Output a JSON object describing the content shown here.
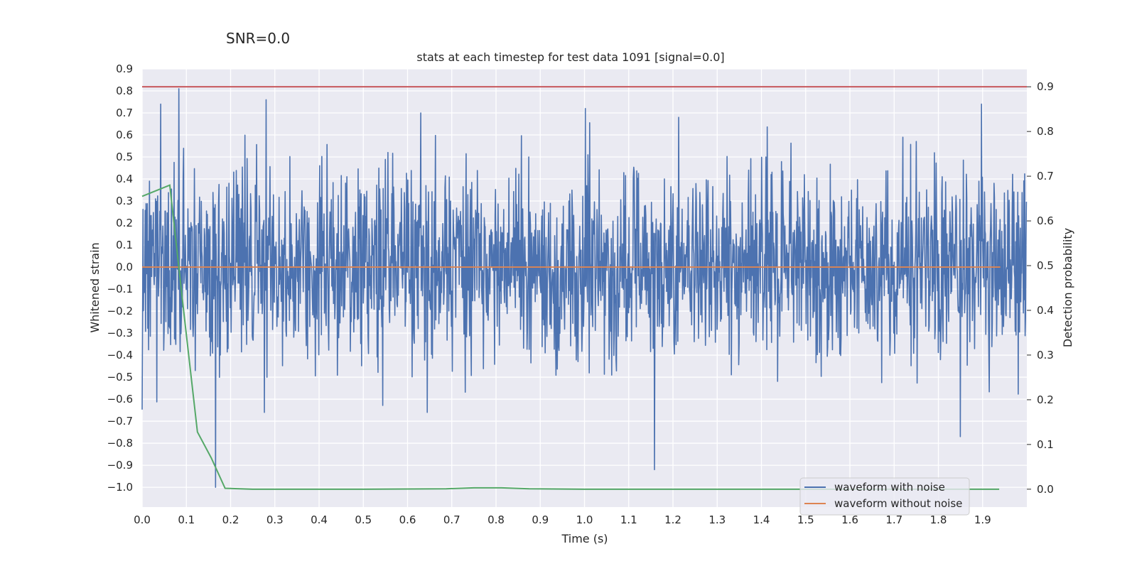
{
  "suptitle": "SNR=0.0",
  "chart_data": {
    "type": "line",
    "title": "stats at each timestep for test data 1091 [signal=0.0]",
    "xlabel": "Time (s)",
    "ylabel": "Whitened strain",
    "ylabel_right": "Detection probability",
    "xlim": [
      0.0,
      2.0
    ],
    "ylim": [
      -1.09,
      0.9
    ],
    "ylim_right": [
      -0.04,
      0.94
    ],
    "x_ticks": [
      0.0,
      0.1,
      0.2,
      0.3,
      0.4,
      0.5,
      0.6,
      0.7,
      0.8,
      0.9,
      1.0,
      1.1,
      1.2,
      1.3,
      1.4,
      1.5,
      1.6,
      1.7,
      1.8,
      1.9
    ],
    "x_tick_labels": [
      "0.0",
      "0.1",
      "0.2",
      "0.3",
      "0.4",
      "0.5",
      "0.6",
      "0.7",
      "0.8",
      "0.9",
      "1.0",
      "1.1",
      "1.2",
      "1.3",
      "1.4",
      "1.5",
      "1.6",
      "1.7",
      "1.8",
      "1.9"
    ],
    "y_ticks": [
      0.9,
      0.8,
      0.7,
      0.6,
      0.5,
      0.4,
      0.3,
      0.2,
      0.1,
      0.0,
      -0.1,
      -0.2,
      -0.3,
      -0.4,
      -0.5,
      -0.6,
      -0.7,
      -0.8,
      -0.9,
      -1.0
    ],
    "y_tick_labels": [
      "0.9",
      "0.8",
      "0.7",
      "0.6",
      "0.5",
      "0.4",
      "0.3",
      "0.2",
      "0.1",
      "0.0",
      "−0.1",
      "−0.2",
      "−0.3",
      "−0.4",
      "−0.5",
      "−0.6",
      "−0.7",
      "−0.8",
      "−0.9",
      "−1.0"
    ],
    "y_ticks_right": [
      0.9,
      0.8,
      0.7,
      0.6,
      0.5,
      0.4,
      0.3,
      0.2,
      0.1,
      0.0
    ],
    "y_tick_labels_right": [
      "0.9",
      "0.8",
      "0.7",
      "0.6",
      "0.5",
      "0.4",
      "0.3",
      "0.2",
      "0.1",
      "0.0"
    ],
    "grid": true,
    "legend_position": "bottom-right",
    "series": [
      {
        "name": "waveform with noise",
        "axis": "left",
        "color": "#4c72b0",
        "style": "dense noisy trace",
        "n_samples": 2048,
        "peaks": [
          {
            "x": 0.042,
            "y": 0.74
          },
          {
            "x": 0.083,
            "y": 0.81
          },
          {
            "x": 0.166,
            "y": -1.0
          },
          {
            "x": 0.28,
            "y": 0.76
          },
          {
            "x": 0.63,
            "y": 0.7
          },
          {
            "x": 1.002,
            "y": 0.72
          },
          {
            "x": 1.158,
            "y": -0.92
          },
          {
            "x": 1.213,
            "y": 0.68
          },
          {
            "x": 1.897,
            "y": 0.74
          },
          {
            "x": 1.85,
            "y": -0.77
          }
        ]
      },
      {
        "name": "waveform without noise",
        "axis": "left",
        "color": "#dd8452",
        "x": [
          0.0,
          1.94
        ],
        "y": [
          0.0,
          0.0
        ]
      },
      {
        "axis": "right",
        "color": "#55a868",
        "x": [
          0.0,
          0.0625,
          0.09375,
          0.125,
          0.15625,
          0.1875,
          0.25,
          0.5,
          0.6875,
          0.75,
          0.8125,
          0.875,
          1.0,
          1.5,
          1.9375
        ],
        "y": [
          0.655,
          0.68,
          0.4,
          0.128,
          0.07,
          0.002,
          0.0,
          0.0,
          0.001,
          0.003,
          0.003,
          0.001,
          0.0,
          0.0,
          0.0
        ]
      },
      {
        "axis": "right",
        "color": "#c44e52",
        "x": [
          0.0,
          2.0
        ],
        "y": [
          0.9,
          0.9
        ]
      }
    ]
  }
}
